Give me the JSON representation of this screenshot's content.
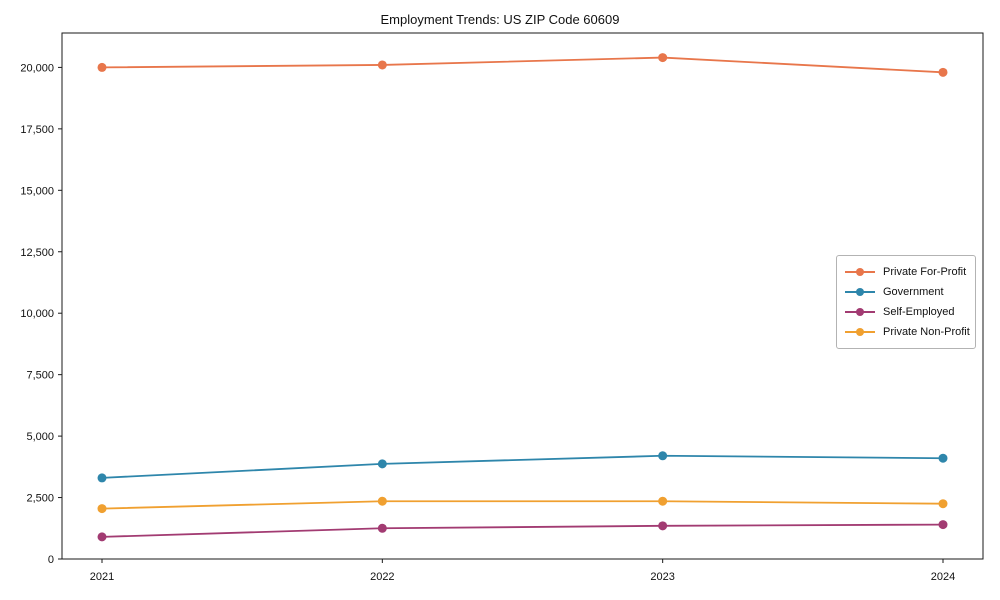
{
  "chart_data": {
    "type": "line",
    "title": "Employment Trends: US ZIP Code 60609",
    "xlabel": "",
    "ylabel": "",
    "x_categories": [
      "2021",
      "2022",
      "2023",
      "2024"
    ],
    "series": [
      {
        "name": "Private For-Profit",
        "color": "#E8764B",
        "values": [
          20000,
          20100,
          20400,
          19800
        ]
      },
      {
        "name": "Government",
        "color": "#2E86AB",
        "values": [
          3300,
          3870,
          4200,
          4100
        ]
      },
      {
        "name": "Self-Employed",
        "color": "#A23B72",
        "values": [
          900,
          1250,
          1350,
          1400
        ]
      },
      {
        "name": "Private Non-Profit",
        "color": "#F0A030",
        "values": [
          2050,
          2350,
          2350,
          2250
        ]
      }
    ],
    "y_tick_values": [
      0,
      2500,
      5000,
      7500,
      10000,
      12500,
      15000,
      17500,
      20000
    ],
    "y_tick_labels": [
      "0",
      "2,500",
      "5,000",
      "7,500",
      "10,000",
      "12,500",
      "15,000",
      "17,500",
      "20,000"
    ],
    "ylim": [
      0,
      21400
    ],
    "grid": false,
    "legend_position": "center-right",
    "marker": "circle"
  }
}
